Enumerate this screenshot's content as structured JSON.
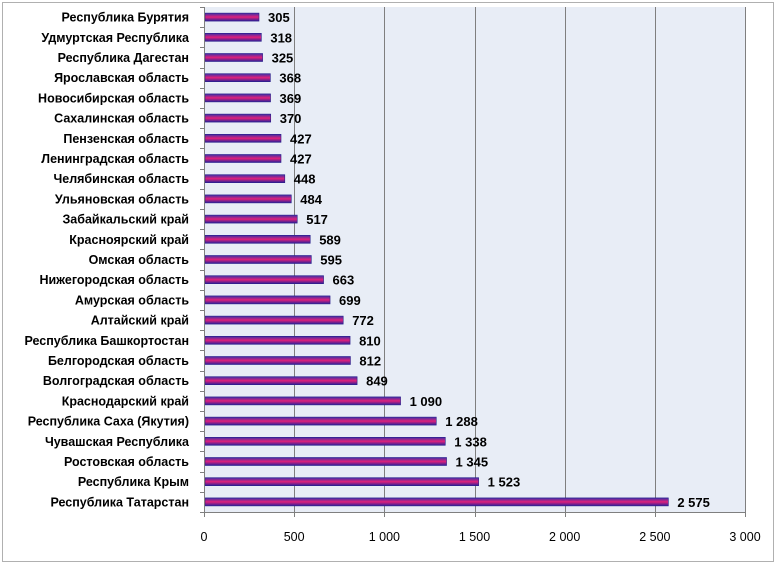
{
  "chart_data": {
    "type": "bar",
    "orientation": "horizontal",
    "categories": [
      "Республика Бурятия",
      "Удмуртская Республика",
      "Республика Дагестан",
      "Ярославская область",
      "Новосибирская область",
      "Сахалинская область",
      "Пензенская область",
      "Ленинградская область",
      "Челябинская область",
      "Ульяновская область",
      "Забайкальский край",
      "Красноярский край",
      "Омская область",
      "Нижегородская область",
      "Амурская область",
      "Алтайский край",
      "Республика Башкортостан",
      "Белгородская область",
      "Волгоградская область",
      "Краснодарский край",
      "Республика Саха (Якутия)",
      "Чувашская Республика",
      "Ростовская область",
      "Республика Крым",
      "Республика Татарстан"
    ],
    "values": [
      305,
      318,
      325,
      368,
      369,
      370,
      427,
      427,
      448,
      484,
      517,
      589,
      595,
      663,
      699,
      772,
      810,
      812,
      849,
      1090,
      1288,
      1338,
      1345,
      1523,
      2575
    ],
    "value_labels": [
      "305",
      "318",
      "325",
      "368",
      "369",
      "370",
      "427",
      "427",
      "448",
      "484",
      "517",
      "589",
      "595",
      "663",
      "699",
      "772",
      "810",
      "812",
      "849",
      "1 090",
      "1 288",
      "1 338",
      "1 345",
      "1 523",
      "2 575"
    ],
    "xlim": [
      0,
      3000
    ],
    "x_ticks": [
      0,
      500,
      1000,
      1500,
      2000,
      2500,
      3000
    ],
    "x_tick_labels": [
      "0",
      "500",
      "1 000",
      "1 500",
      "2 000",
      "2 500",
      "3 000"
    ],
    "grid": "vertical",
    "legend": "none",
    "title": "",
    "xlabel": "",
    "ylabel": "",
    "colors": {
      "bar_top": "#3a2fa8",
      "bar_middle": "#e0207a",
      "bar_bottom": "#2a1f9a",
      "plot_background": "#e8edf6",
      "gridline": "#7f7f7f",
      "frame": "#b0b0b0"
    }
  }
}
